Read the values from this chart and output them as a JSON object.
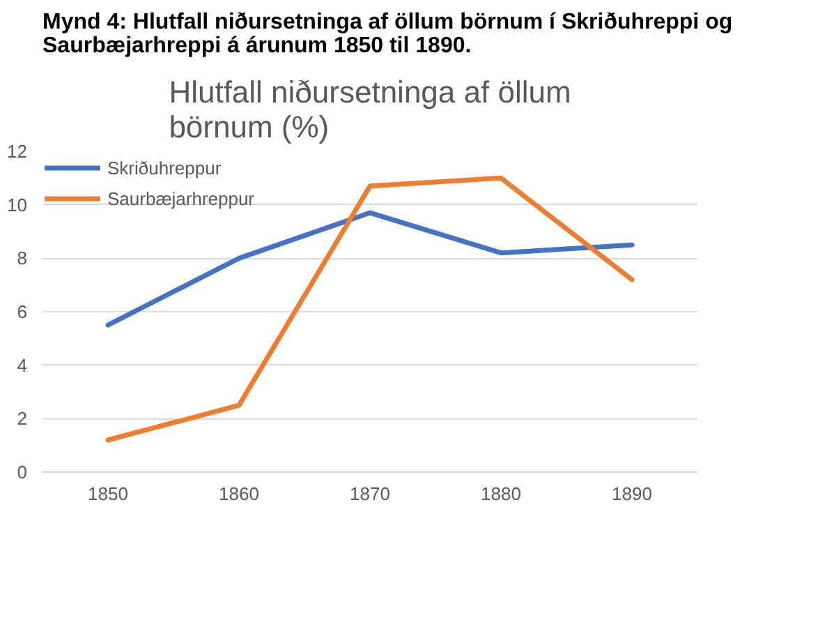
{
  "chart_data": {
    "type": "line",
    "title": "Mynd 4: Hlutfall niðursetninga af öllum börnum í Skriðuhreppi og Saurbæjarhreppi á árunum 1850 til 1890.",
    "subtitle": "Hlutfall niðursetninga af öllum börnum (%)",
    "categories": [
      "1850",
      "1860",
      "1870",
      "1880",
      "1890"
    ],
    "series": [
      {
        "name": "Skriðuhreppur",
        "color": "#4472c4",
        "values": [
          5.5,
          8.0,
          9.7,
          8.2,
          8.5
        ]
      },
      {
        "name": "Saurbæjarhreppur",
        "color": "#ed7d31",
        "values": [
          1.2,
          2.5,
          10.7,
          11.0,
          7.2
        ]
      }
    ],
    "ylim": [
      0,
      12
    ],
    "yticks": [
      0,
      2,
      4,
      6,
      8,
      10,
      12
    ],
    "grid": "y",
    "legend": "top left",
    "marker": "none",
    "line_style": "solid"
  }
}
